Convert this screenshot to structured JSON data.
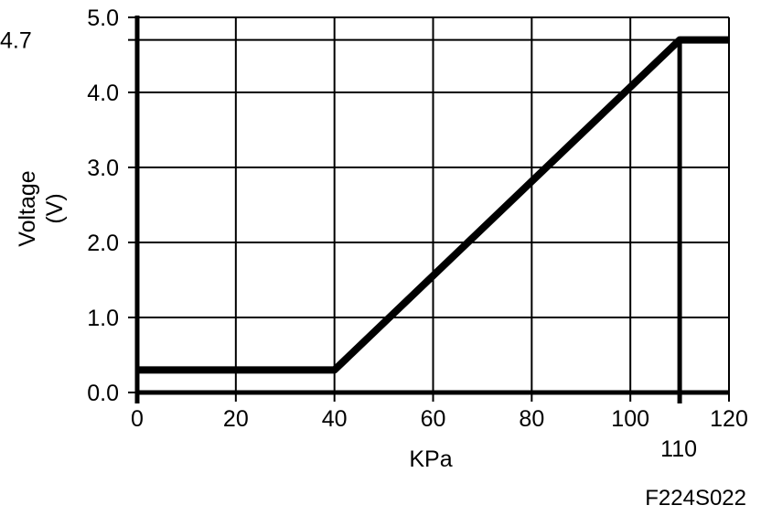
{
  "chart_data": {
    "type": "line",
    "xlabel": "KPa",
    "ylabel": [
      "Voltage",
      "(V)"
    ],
    "xlim": [
      0,
      120
    ],
    "ylim": [
      0,
      5.0
    ],
    "x_ticks": [
      0,
      20,
      40,
      60,
      80,
      100,
      120
    ],
    "x_tick_labels": [
      "0",
      "20",
      "40",
      "60",
      "80",
      "100",
      "120"
    ],
    "y_ticks": [
      0,
      1.0,
      2.0,
      3.0,
      4.0,
      5.0
    ],
    "y_tick_labels": [
      "0.0",
      "1.0",
      "2.0",
      "3.0",
      "4.0",
      "5.0"
    ],
    "grid": true,
    "series": [
      {
        "x": [
          0,
          40,
          110,
          120
        ],
        "y": [
          0.3,
          0.3,
          4.7,
          4.7
        ]
      }
    ],
    "annotations": [
      {
        "axis": "y",
        "value": 4.7,
        "label": "4.7"
      },
      {
        "axis": "x",
        "value": 110,
        "label": "110"
      }
    ]
  },
  "figure_code": "F224S022",
  "colors": {
    "line": "#000000",
    "grid": "#000000",
    "background": "#ffffff"
  }
}
